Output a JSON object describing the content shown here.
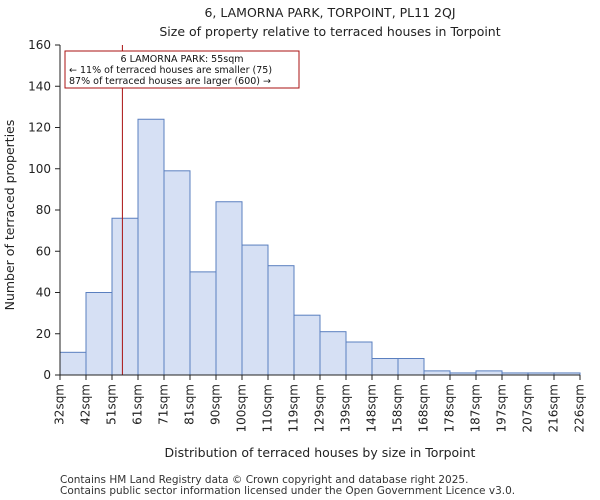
{
  "chart_data": {
    "type": "bar",
    "title": "6, LAMORNA PARK, TORPOINT, PL11 2QJ",
    "subtitle": "Size of property relative to terraced houses in Torpoint",
    "xlabel": "Distribution of terraced houses by size in Torpoint",
    "ylabel": "Number of terraced properties",
    "ylim": [
      0,
      160
    ],
    "yticks": [
      0,
      20,
      40,
      60,
      80,
      100,
      120,
      140,
      160
    ],
    "bin_edges": [
      "32sqm",
      "42sqm",
      "51sqm",
      "61sqm",
      "71sqm",
      "81sqm",
      "90sqm",
      "100sqm",
      "110sqm",
      "119sqm",
      "129sqm",
      "139sqm",
      "148sqm",
      "158sqm",
      "168sqm",
      "178sqm",
      "187sqm",
      "197sqm",
      "207sqm",
      "216sqm",
      "226sqm"
    ],
    "values": [
      11,
      40,
      76,
      124,
      99,
      50,
      84,
      63,
      53,
      29,
      21,
      16,
      8,
      8,
      2,
      1,
      2,
      1,
      1,
      1
    ],
    "bar_color": "#d6e0f4",
    "bar_edge_color": "#5a7fbf",
    "marker": {
      "value_sqm": 55,
      "color": "#aa1111",
      "label": "6 LAMORNA PARK: 55sqm",
      "line2": "← 11% of terraced houses are smaller (75)",
      "line3": "87% of terraced houses are larger (600) →"
    },
    "grid": false
  },
  "footer": {
    "line1": "Contains HM Land Registry data © Crown copyright and database right 2025.",
    "line2": "Contains public sector information licensed under the Open Government Licence v3.0."
  }
}
